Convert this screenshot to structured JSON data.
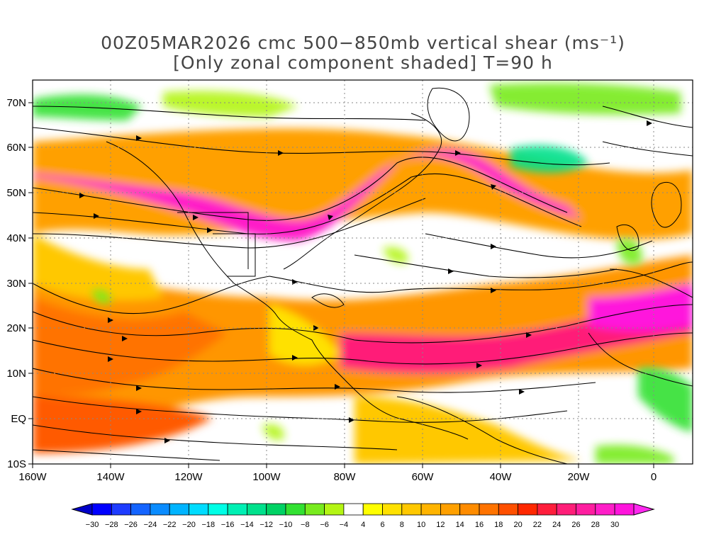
{
  "title": {
    "line1": "00Z05MAR2026 cmc 500−850mb vertical shear (ms⁻¹)",
    "line2": "[Only zonal component shaded] T=90 h"
  },
  "axes": {
    "lat_labels": [
      "70N",
      "60N",
      "50N",
      "40N",
      "30N",
      "20N",
      "10N",
      "EQ",
      "10S"
    ],
    "lon_labels": [
      "160W",
      "140W",
      "120W",
      "100W",
      "80W",
      "60W",
      "40W",
      "20W",
      "0"
    ]
  },
  "colorbar": {
    "labels": [
      "−30",
      "−28",
      "−26",
      "−24",
      "−22",
      "−20",
      "−18",
      "−16",
      "−14",
      "−12",
      "−10",
      "−8",
      "−6",
      "−4",
      "4",
      "6",
      "8",
      "10",
      "12",
      "14",
      "16",
      "18",
      "20",
      "22",
      "24",
      "26",
      "28",
      "30"
    ],
    "colors": [
      "#0000ff",
      "#1e3cff",
      "#1464ff",
      "#0a8cff",
      "#00b4ff",
      "#00dcff",
      "#00ffe6",
      "#00f0b4",
      "#00e18c",
      "#00d264",
      "#32e132",
      "#78eb1e",
      "#b4f514",
      "#ffffff",
      "#ffff00",
      "#ffe100",
      "#ffc800",
      "#ffb400",
      "#ffa000",
      "#ff8c00",
      "#ff7300",
      "#ff5000",
      "#ff2800",
      "#ff1e3c",
      "#ff1e78",
      "#ff1ea0",
      "#ff1ec8",
      "#ff14dc"
    ],
    "low_arrow_color": "#0000c8",
    "high_arrow_color": "#ff28f0"
  }
}
